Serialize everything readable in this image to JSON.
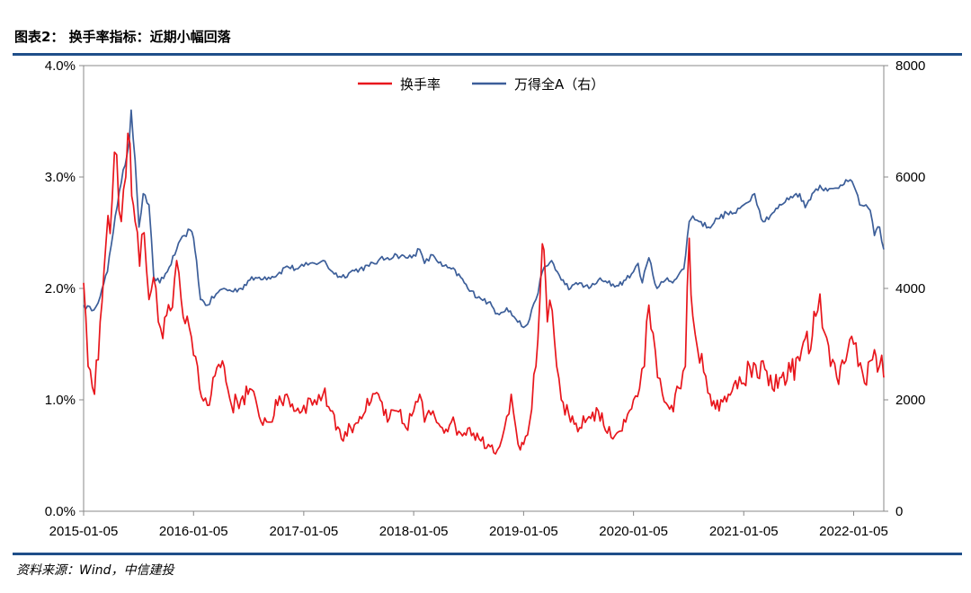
{
  "header": {
    "figure_title": "图表2：   换手率指标：近期小幅回落"
  },
  "footer": {
    "source": "资料来源：Wind，中信建投"
  },
  "colors": {
    "turnover": "#e8161c",
    "index": "#3c5e99",
    "rule": "#1f4e89",
    "axis": "#888888"
  },
  "chart_data": {
    "type": "line",
    "title": "",
    "xlabel": "",
    "ylabel": "",
    "y2label": "",
    "grid": false,
    "legend_position": "top-center",
    "x_range": [
      "2015-01-05",
      "2022-04-15"
    ],
    "x_tick_labels": [
      "2015-01-05",
      "2016-01-05",
      "2017-01-05",
      "2018-01-05",
      "2019-01-05",
      "2020-01-05",
      "2021-01-05",
      "2022-01-05"
    ],
    "y_left": {
      "min": 0,
      "max": 4,
      "ticks": [
        0,
        1,
        2,
        3,
        4
      ],
      "tick_labels": [
        "0.0%",
        "1.0%",
        "2.0%",
        "3.0%",
        "4.0%"
      ]
    },
    "y_right": {
      "min": 0,
      "max": 8000,
      "ticks": [
        0,
        2000,
        4000,
        6000,
        8000
      ],
      "tick_labels": [
        "0",
        "2000",
        "4000",
        "6000",
        "8000"
      ]
    },
    "series": [
      {
        "name": "换手率",
        "axis": "left",
        "color": "#e8161c",
        "points": [
          [
            "2015-01-05",
            2.05
          ],
          [
            "2015-01-20",
            1.3
          ],
          [
            "2015-02-10",
            1.05
          ],
          [
            "2015-03-01",
            1.7
          ],
          [
            "2015-03-20",
            2.4
          ],
          [
            "2015-04-10",
            2.8
          ],
          [
            "2015-04-25",
            3.2
          ],
          [
            "2015-05-10",
            2.6
          ],
          [
            "2015-05-25",
            3.0
          ],
          [
            "2015-06-08",
            3.3
          ],
          [
            "2015-06-25",
            2.6
          ],
          [
            "2015-07-10",
            2.2
          ],
          [
            "2015-07-25",
            2.5
          ],
          [
            "2015-08-10",
            1.9
          ],
          [
            "2015-08-25",
            2.1
          ],
          [
            "2015-09-10",
            1.7
          ],
          [
            "2015-09-25",
            1.55
          ],
          [
            "2015-10-20",
            1.8
          ],
          [
            "2015-11-10",
            2.25
          ],
          [
            "2015-11-25",
            1.9
          ],
          [
            "2015-12-15",
            1.75
          ],
          [
            "2016-01-05",
            1.4
          ],
          [
            "2016-01-25",
            1.1
          ],
          [
            "2016-02-20",
            0.95
          ],
          [
            "2016-03-10",
            1.2
          ],
          [
            "2016-04-10",
            1.35
          ],
          [
            "2016-05-10",
            0.95
          ],
          [
            "2016-06-10",
            1.0
          ],
          [
            "2016-07-10",
            1.1
          ],
          [
            "2016-08-10",
            0.85
          ],
          [
            "2016-09-10",
            0.8
          ],
          [
            "2016-10-10",
            0.95
          ],
          [
            "2016-11-10",
            1.05
          ],
          [
            "2016-12-10",
            0.9
          ],
          [
            "2017-01-05",
            0.95
          ],
          [
            "2017-02-10",
            1.0
          ],
          [
            "2017-03-10",
            1.05
          ],
          [
            "2017-04-10",
            0.9
          ],
          [
            "2017-05-10",
            0.65
          ],
          [
            "2017-06-10",
            0.75
          ],
          [
            "2017-07-10",
            0.85
          ],
          [
            "2017-08-10",
            0.95
          ],
          [
            "2017-09-10",
            1.05
          ],
          [
            "2017-10-10",
            0.8
          ],
          [
            "2017-11-10",
            0.9
          ],
          [
            "2017-12-10",
            0.75
          ],
          [
            "2018-01-05",
            0.9
          ],
          [
            "2018-01-25",
            1.05
          ],
          [
            "2018-02-10",
            0.8
          ],
          [
            "2018-03-10",
            0.9
          ],
          [
            "2018-04-10",
            0.75
          ],
          [
            "2018-05-10",
            0.8
          ],
          [
            "2018-06-10",
            0.7
          ],
          [
            "2018-07-10",
            0.75
          ],
          [
            "2018-08-10",
            0.65
          ],
          [
            "2018-09-10",
            0.6
          ],
          [
            "2018-10-10",
            0.55
          ],
          [
            "2018-10-25",
            0.65
          ],
          [
            "2018-11-10",
            0.85
          ],
          [
            "2018-11-25",
            1.05
          ],
          [
            "2018-12-10",
            0.75
          ],
          [
            "2018-12-25",
            0.55
          ],
          [
            "2019-01-05",
            0.6
          ],
          [
            "2019-01-25",
            0.8
          ],
          [
            "2019-02-15",
            1.3
          ],
          [
            "2019-02-28",
            1.9
          ],
          [
            "2019-03-08",
            2.4
          ],
          [
            "2019-03-25",
            1.7
          ],
          [
            "2019-04-10",
            1.8
          ],
          [
            "2019-04-25",
            1.3
          ],
          [
            "2019-05-10",
            1.0
          ],
          [
            "2019-06-10",
            0.8
          ],
          [
            "2019-07-10",
            0.75
          ],
          [
            "2019-08-10",
            0.85
          ],
          [
            "2019-09-10",
            0.9
          ],
          [
            "2019-10-10",
            0.7
          ],
          [
            "2019-11-10",
            0.7
          ],
          [
            "2019-12-10",
            0.8
          ],
          [
            "2020-01-05",
            1.0
          ],
          [
            "2020-01-25",
            1.1
          ],
          [
            "2020-02-10",
            1.3
          ],
          [
            "2020-02-25",
            1.85
          ],
          [
            "2020-03-10",
            1.6
          ],
          [
            "2020-03-25",
            1.2
          ],
          [
            "2020-04-10",
            1.05
          ],
          [
            "2020-05-10",
            0.95
          ],
          [
            "2020-06-10",
            1.1
          ],
          [
            "2020-06-25",
            1.3
          ],
          [
            "2020-07-08",
            2.45
          ],
          [
            "2020-07-20",
            1.75
          ],
          [
            "2020-08-05",
            1.45
          ],
          [
            "2020-08-25",
            1.25
          ],
          [
            "2020-09-15",
            1.05
          ],
          [
            "2020-10-15",
            0.9
          ],
          [
            "2020-11-15",
            1.05
          ],
          [
            "2020-12-15",
            1.1
          ],
          [
            "2021-01-05",
            1.15
          ],
          [
            "2021-01-25",
            1.3
          ],
          [
            "2021-02-20",
            1.2
          ],
          [
            "2021-03-10",
            1.35
          ],
          [
            "2021-04-10",
            1.1
          ],
          [
            "2021-05-10",
            1.2
          ],
          [
            "2021-06-10",
            1.25
          ],
          [
            "2021-07-10",
            1.35
          ],
          [
            "2021-07-28",
            1.55
          ],
          [
            "2021-08-15",
            1.45
          ],
          [
            "2021-09-01",
            1.75
          ],
          [
            "2021-09-15",
            1.95
          ],
          [
            "2021-10-01",
            1.6
          ],
          [
            "2021-10-20",
            1.3
          ],
          [
            "2021-11-10",
            1.2
          ],
          [
            "2021-12-10",
            1.35
          ],
          [
            "2022-01-05",
            1.5
          ],
          [
            "2022-01-20",
            1.3
          ],
          [
            "2022-02-10",
            1.15
          ],
          [
            "2022-03-01",
            1.35
          ],
          [
            "2022-03-15",
            1.45
          ],
          [
            "2022-03-25",
            1.25
          ],
          [
            "2022-04-08",
            1.4
          ],
          [
            "2022-04-15",
            1.2
          ]
        ]
      },
      {
        "name": "万得全A（右）",
        "axis": "right",
        "color": "#3c5e99",
        "points": [
          [
            "2015-01-05",
            3700
          ],
          [
            "2015-02-01",
            3600
          ],
          [
            "2015-03-01",
            3850
          ],
          [
            "2015-03-25",
            4300
          ],
          [
            "2015-04-20",
            5300
          ],
          [
            "2015-05-10",
            5900
          ],
          [
            "2015-06-05",
            6600
          ],
          [
            "2015-06-12",
            7200
          ],
          [
            "2015-06-25",
            6300
          ],
          [
            "2015-07-08",
            5100
          ],
          [
            "2015-07-22",
            5700
          ],
          [
            "2015-08-10",
            5500
          ],
          [
            "2015-08-26",
            4200
          ],
          [
            "2015-09-15",
            4100
          ],
          [
            "2015-10-10",
            4300
          ],
          [
            "2015-11-10",
            4700
          ],
          [
            "2015-12-05",
            4950
          ],
          [
            "2015-12-25",
            5050
          ],
          [
            "2016-01-05",
            4900
          ],
          [
            "2016-01-15",
            4500
          ],
          [
            "2016-01-28",
            3800
          ],
          [
            "2016-02-20",
            3700
          ],
          [
            "2016-03-20",
            3900
          ],
          [
            "2016-04-15",
            4000
          ],
          [
            "2016-05-10",
            3950
          ],
          [
            "2016-06-10",
            4000
          ],
          [
            "2016-07-10",
            4150
          ],
          [
            "2016-08-10",
            4200
          ],
          [
            "2016-09-10",
            4200
          ],
          [
            "2016-10-10",
            4250
          ],
          [
            "2016-11-10",
            4400
          ],
          [
            "2016-12-10",
            4350
          ],
          [
            "2017-01-05",
            4400
          ],
          [
            "2017-02-10",
            4450
          ],
          [
            "2017-03-10",
            4500
          ],
          [
            "2017-04-10",
            4300
          ],
          [
            "2017-05-10",
            4200
          ],
          [
            "2017-06-10",
            4300
          ],
          [
            "2017-07-10",
            4350
          ],
          [
            "2017-08-10",
            4400
          ],
          [
            "2017-09-10",
            4500
          ],
          [
            "2017-10-10",
            4550
          ],
          [
            "2017-11-10",
            4600
          ],
          [
            "2017-12-10",
            4550
          ],
          [
            "2018-01-05",
            4600
          ],
          [
            "2018-01-25",
            4700
          ],
          [
            "2018-02-10",
            4450
          ],
          [
            "2018-03-10",
            4600
          ],
          [
            "2018-04-10",
            4400
          ],
          [
            "2018-05-10",
            4350
          ],
          [
            "2018-06-10",
            4200
          ],
          [
            "2018-07-10",
            3950
          ],
          [
            "2018-08-10",
            3850
          ],
          [
            "2018-09-10",
            3750
          ],
          [
            "2018-10-10",
            3550
          ],
          [
            "2018-11-10",
            3650
          ],
          [
            "2018-12-10",
            3450
          ],
          [
            "2019-01-05",
            3300
          ],
          [
            "2019-01-25",
            3450
          ],
          [
            "2019-02-15",
            3800
          ],
          [
            "2019-03-08",
            4300
          ],
          [
            "2019-04-08",
            4500
          ],
          [
            "2019-05-10",
            4150
          ],
          [
            "2019-06-10",
            4000
          ],
          [
            "2019-07-10",
            4100
          ],
          [
            "2019-08-10",
            4000
          ],
          [
            "2019-09-10",
            4150
          ],
          [
            "2019-10-10",
            4100
          ],
          [
            "2019-11-10",
            4050
          ],
          [
            "2019-12-10",
            4150
          ],
          [
            "2020-01-05",
            4300
          ],
          [
            "2020-01-20",
            4450
          ],
          [
            "2020-02-03",
            4100
          ],
          [
            "2020-02-25",
            4550
          ],
          [
            "2020-03-23",
            4000
          ],
          [
            "2020-04-20",
            4150
          ],
          [
            "2020-05-20",
            4150
          ],
          [
            "2020-06-20",
            4350
          ],
          [
            "2020-07-08",
            5200
          ],
          [
            "2020-07-20",
            5300
          ],
          [
            "2020-08-10",
            5200
          ],
          [
            "2020-09-10",
            5100
          ],
          [
            "2020-10-10",
            5250
          ],
          [
            "2020-11-10",
            5350
          ],
          [
            "2020-12-10",
            5350
          ],
          [
            "2021-01-05",
            5500
          ],
          [
            "2021-02-10",
            5700
          ],
          [
            "2021-02-26",
            5400
          ],
          [
            "2021-03-10",
            5200
          ],
          [
            "2021-04-10",
            5350
          ],
          [
            "2021-05-10",
            5500
          ],
          [
            "2021-06-10",
            5650
          ],
          [
            "2021-07-10",
            5700
          ],
          [
            "2021-07-28",
            5450
          ],
          [
            "2021-08-20",
            5700
          ],
          [
            "2021-09-15",
            5850
          ],
          [
            "2021-10-10",
            5750
          ],
          [
            "2021-11-10",
            5800
          ],
          [
            "2021-12-10",
            5950
          ],
          [
            "2021-12-25",
            5950
          ],
          [
            "2022-01-05",
            5850
          ],
          [
            "2022-01-25",
            5500
          ],
          [
            "2022-02-15",
            5500
          ],
          [
            "2022-03-01",
            5400
          ],
          [
            "2022-03-15",
            4950
          ],
          [
            "2022-04-01",
            5100
          ],
          [
            "2022-04-15",
            4700
          ]
        ]
      }
    ]
  }
}
